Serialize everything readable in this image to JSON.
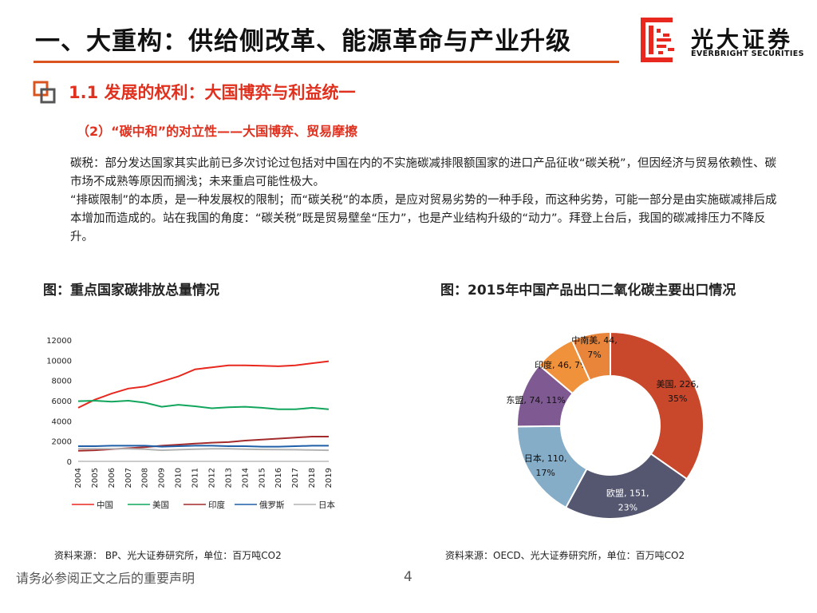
{
  "header": {
    "title": "一、大重构：供给侧改革、能源革命与产业升级",
    "logo_cn": "光大证券",
    "logo_en": "EVERBRIGHT SECURITIES"
  },
  "section": {
    "title": "1.1 发展的权利：大国博弈与利益统一",
    "subtitle": "（2）“碳中和”的对立性——大国博弈、贸易摩擦"
  },
  "body": {
    "p1": "碳税：部分发达国家其实此前已多次讨论过包括对中国在内的不实施碳减排限额国家的进口产品征收“碳关税”，但因经济与贸易依赖性、碳市场不成熟等原因而搁浅；未来重启可能性极大。",
    "p2": "“排碳限制”的本质，是一种发展权的限制；而“碳关税”的本质，是应对贸易劣势的一种手段，而这种劣势，可能一部分是由实施碳减排后成本增加而造成的。站在我国的角度：“碳关税”既是贸易壁垒“压力”，也是产业结构升级的“动力”。拜登上台后，我国的碳减排压力不降反升。"
  },
  "left_chart": {
    "caption": "图：重点国家碳排放总量情况",
    "source": "资料来源：  BP、光大证券研究所，单位：百万吨CO2"
  },
  "right_chart": {
    "caption": "图：2015年中国产品出口二氧化碳主要出口情况",
    "source": "资料来源：OECD、光大证券研究所，单位：百万吨CO2"
  },
  "footer": {
    "disclaimer": "请务必参阅正文之后的重要声明",
    "page": "4"
  },
  "chart_data": [
    {
      "type": "line",
      "title": "图：重点国家碳排放总量情况",
      "x": [
        "2004",
        "2005",
        "2006",
        "2007",
        "2008",
        "2009",
        "2010",
        "2011",
        "2012",
        "2013",
        "2014",
        "2015",
        "2016",
        "2017",
        "2018",
        "2019"
      ],
      "ylim": [
        0,
        12000
      ],
      "yticks": [
        0,
        2000,
        4000,
        6000,
        8000,
        10000,
        12000
      ],
      "ytick_labels": [
        "0",
        "2000",
        "4000",
        "6000",
        "8000",
        "10000",
        "12000"
      ],
      "ylabel": "",
      "xlabel": "",
      "legend_position": "bottom",
      "series": [
        {
          "name": "中国",
          "color": "#e8281e",
          "values": [
            5300,
            6100,
            6700,
            7200,
            7400,
            7900,
            8400,
            9100,
            9300,
            9500,
            9500,
            9450,
            9400,
            9500,
            9700,
            9900
          ]
        },
        {
          "name": "美国",
          "color": "#12a55c",
          "values": [
            5950,
            6000,
            5900,
            6000,
            5800,
            5400,
            5600,
            5450,
            5250,
            5350,
            5400,
            5300,
            5150,
            5150,
            5300,
            5150
          ]
        },
        {
          "name": "印度",
          "color": "#a32b2b",
          "values": [
            1050,
            1100,
            1200,
            1300,
            1400,
            1550,
            1650,
            1750,
            1850,
            1900,
            2050,
            2150,
            2250,
            2350,
            2450,
            2450
          ]
        },
        {
          "name": "俄罗斯",
          "color": "#1f5fa8",
          "values": [
            1500,
            1500,
            1550,
            1550,
            1550,
            1450,
            1500,
            1550,
            1550,
            1500,
            1500,
            1450,
            1450,
            1500,
            1550,
            1550
          ]
        },
        {
          "name": "日本",
          "color": "#b3b3b3",
          "values": [
            1250,
            1250,
            1250,
            1250,
            1200,
            1100,
            1150,
            1200,
            1250,
            1250,
            1200,
            1180,
            1170,
            1150,
            1120,
            1100
          ]
        }
      ]
    },
    {
      "type": "pie",
      "variant": "donut",
      "title": "图：2015年中国产品出口二氧化碳主要出口情况",
      "slices": [
        {
          "name": "美国",
          "value": 226,
          "percent": "35%",
          "color": "#c9472b",
          "label": "美国, 226,",
          "pct_label": "35%"
        },
        {
          "name": "欧盟",
          "value": 151,
          "percent": "23%",
          "color": "#555770",
          "label": "欧盟, 151,",
          "pct_label": "23%"
        },
        {
          "name": "日本",
          "value": 110,
          "percent": "17%",
          "color": "#86adc8",
          "label": "日本, 110,",
          "pct_label": "17%"
        },
        {
          "name": "东盟",
          "value": 74,
          "percent": "11%",
          "color": "#7f5a92",
          "label": "东盟, 74, 11%",
          "pct_label": ""
        },
        {
          "name": "印度",
          "value": 46,
          "percent": "7%",
          "color": "#f0913c",
          "label": "印度, 46, 7%",
          "pct_label": ""
        },
        {
          "name": "中南美",
          "value": 44,
          "percent": "7%",
          "color": "#e9853a",
          "label": "中南美, 44,",
          "pct_label": "7%"
        }
      ]
    }
  ],
  "colors": {
    "accent_red": "#e0301e",
    "rule_orange": "#d9541e",
    "logo_red": "#e8281e"
  }
}
